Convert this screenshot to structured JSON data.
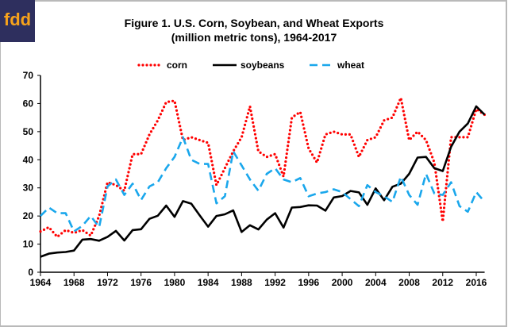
{
  "logo": {
    "text": "fdd",
    "bg": "#2e2f5e",
    "fg": "#f7a21b"
  },
  "chart_data": {
    "type": "line",
    "title": "Figure 1.  U.S. Corn, Soybean, and Wheat Exports",
    "subtitle": "(million metric tons), 1964-2017",
    "xlabel": "",
    "ylabel": "",
    "xlim": [
      1964,
      2017
    ],
    "ylim": [
      0,
      70
    ],
    "yticks": [
      0,
      10,
      20,
      30,
      40,
      50,
      60,
      70
    ],
    "xticks": [
      1964,
      1968,
      1972,
      1976,
      1980,
      1984,
      1988,
      1992,
      1996,
      2000,
      2004,
      2008,
      2012,
      2016
    ],
    "grid": false,
    "legend": "top",
    "x": [
      1964,
      1965,
      1966,
      1967,
      1968,
      1969,
      1970,
      1971,
      1972,
      1973,
      1974,
      1975,
      1976,
      1977,
      1978,
      1979,
      1980,
      1981,
      1982,
      1983,
      1984,
      1985,
      1986,
      1987,
      1988,
      1989,
      1990,
      1991,
      1992,
      1993,
      1994,
      1995,
      1996,
      1997,
      1998,
      1999,
      2000,
      2001,
      2002,
      2003,
      2004,
      2005,
      2006,
      2007,
      2008,
      2009,
      2010,
      2011,
      2012,
      2013,
      2014,
      2015,
      2016,
      2017
    ],
    "series": [
      {
        "name": "corn",
        "color": "#ff0000",
        "style": "dotted",
        "values": [
          14.5,
          16,
          12.6,
          15,
          14,
          15,
          13,
          20,
          32,
          31,
          29,
          42,
          42,
          49,
          54,
          60.5,
          61,
          47,
          48,
          47,
          46,
          31,
          37,
          43,
          48,
          59,
          43,
          41,
          42,
          34,
          55,
          57,
          44,
          39,
          49,
          50,
          49,
          49,
          41,
          47,
          48,
          54,
          55,
          62,
          47,
          50,
          47,
          39,
          18,
          48,
          48,
          48,
          58,
          56
        ]
      },
      {
        "name": "soybeans",
        "color": "#000000",
        "style": "solid",
        "values": [
          5.5,
          6.6,
          7,
          7.2,
          7.7,
          11.6,
          11.8,
          11.2,
          12.6,
          14.7,
          11.3,
          15,
          15.3,
          19,
          20.1,
          23.7,
          19.7,
          25.3,
          24.4,
          20.2,
          16.2,
          20,
          20.6,
          22,
          14.3,
          16.7,
          15.2,
          18.7,
          21,
          15.9,
          23,
          23.2,
          23.8,
          23.7,
          21.9,
          26.6,
          27.1,
          28.9,
          28.4,
          24,
          29.8,
          25.6,
          30.4,
          31.5,
          35,
          40.8,
          41,
          37,
          36,
          44.6,
          50,
          52.9,
          59,
          56
        ]
      },
      {
        "name": "wheat",
        "color": "#1aa7ec",
        "style": "dashed",
        "values": [
          20,
          23,
          21,
          21,
          14.5,
          16.5,
          20,
          16,
          30.5,
          33,
          27.5,
          31.5,
          25.7,
          30.5,
          32,
          37,
          41,
          48,
          40,
          38.5,
          38.5,
          24.5,
          27,
          43,
          38,
          33,
          29,
          35,
          37,
          33,
          32,
          33.5,
          27,
          28,
          28.5,
          29.5,
          28.5,
          26,
          23.5,
          31,
          28.5,
          27,
          25,
          34,
          27.5,
          24,
          35,
          28,
          27.5,
          32,
          23.5,
          21.5,
          28.5,
          25
        ]
      }
    ]
  }
}
